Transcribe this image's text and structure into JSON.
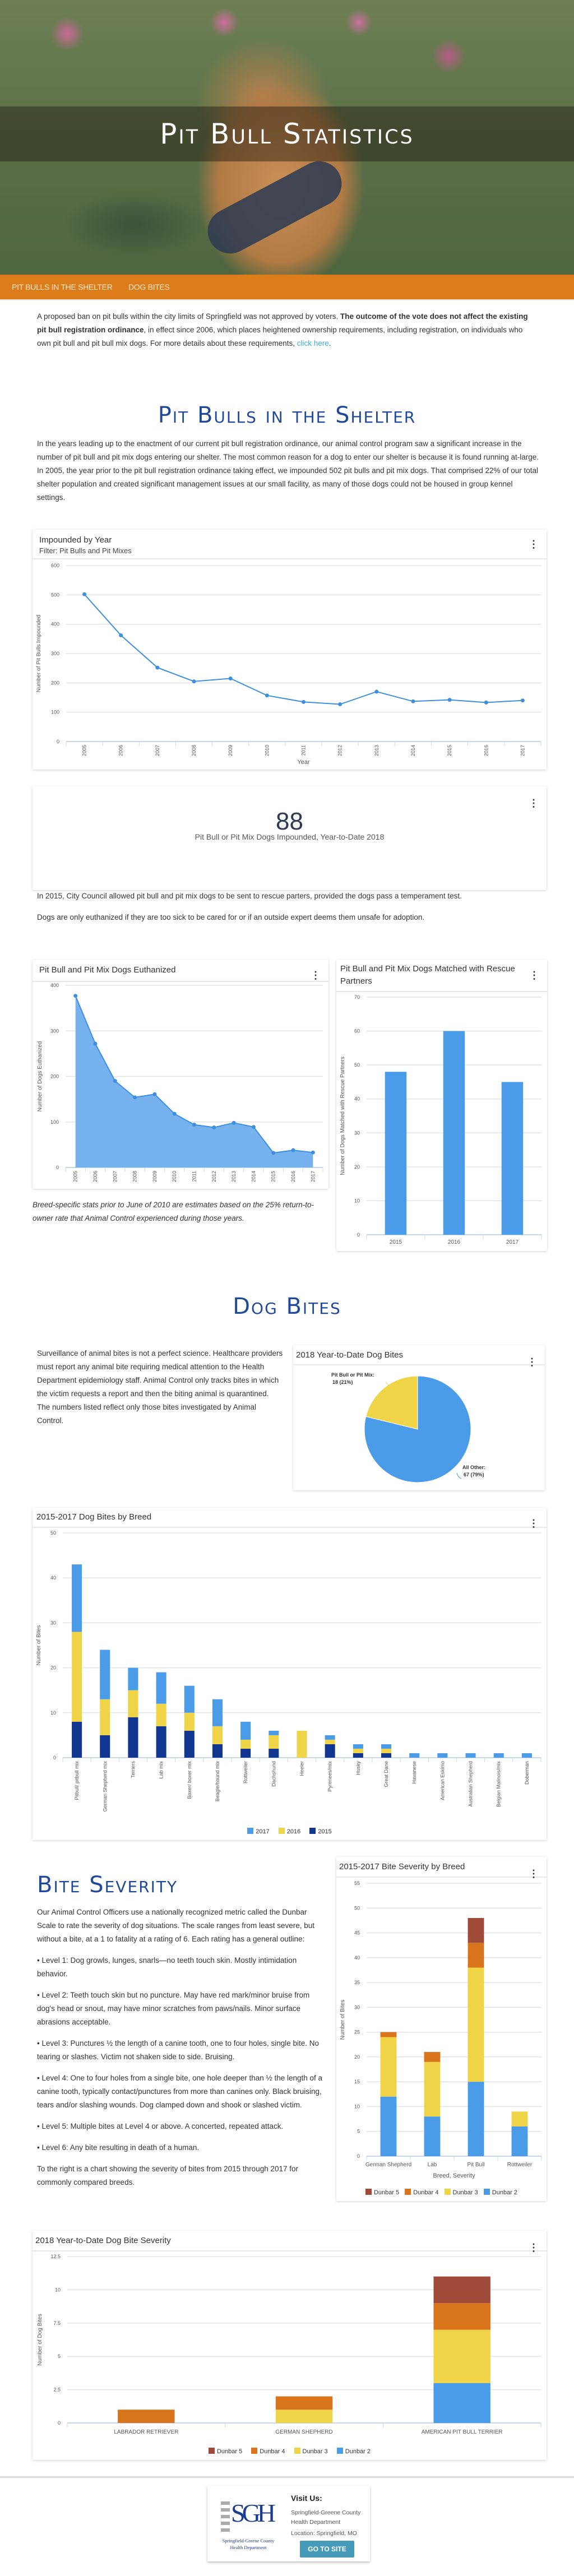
{
  "header": {
    "title": "Pit Bull Statistics"
  },
  "nav": {
    "items": [
      "Pit Bulls in the Shelter",
      "Dog Bites"
    ]
  },
  "intro": {
    "text1": "A proposed ban on pit bulls within the city limits of Springfield was not approved by voters. ",
    "bold": "The outcome of the vote does not affect the existing pit bull registration ordinance",
    "text2": ", in effect since 2006, which places heightened ownership requirements, including registration, on individuals who own pit bull and pit bull mix dogs. For more details about these requirements, ",
    "link": "click here",
    "end": "."
  },
  "shelter": {
    "heading": "Pit Bulls in the Shelter",
    "paragraph": "In the years leading up to the enactment of our current pit bull registration ordinance, our animal control program saw a significant increase in the number of pit bull and pit mix dogs entering our shelter. The most common reason for a dog to enter our shelter is because it is found running at-large. In 2005, the year prior to the pit bull registration ordinance taking effect, we impounded 502 pit bulls and pit mix dogs. That comprised 22% of our total shelter population and created significant management issues at our small facility, as many of those dogs could not be housed in group kennel settings.",
    "stat_value": "88",
    "stat_label": "Pit Bull or Pit Mix Dogs Impounded, Year-to-Date 2018",
    "note1": "In 2015, City Council allowed pit bull and pit mix dogs to be sent to rescue parters, provided the dogs pass a temperament test.",
    "note2": "Dogs are only euthanized if they are too sick to be cared for or if an outside expert deems them unsafe for adoption.",
    "italic_note": "Breed-specific stats prior to June of 2010 are estimates based on the 25% return-to-owner rate that Animal Control experienced during those years."
  },
  "bites": {
    "heading": "Dog Bites",
    "paragraph": "Surveillance of animal bites is not a perfect science. Healthcare providers must report any animal bite requiring medical attention to the Health Department epidemiology staff. Animal Control only tracks bites in which the victim requests a report and then the biting animal is quarantined. The numbers listed reflect only those bites investigated by Animal Control."
  },
  "severity": {
    "heading": "Bite Severity",
    "intro": "Our Animal Control Officers use a nationally recognized metric called the Dunbar Scale to rate the severity of dog situations. The scale ranges from least severe, but without a bite, at a 1 to fatality at a rating of 6. Each rating has a general outline:",
    "levels": [
      "• Level 1: Dog growls, lunges, snarls—no teeth touch skin. Mostly intimidation behavior.",
      "• Level 2: Teeth touch skin but no puncture. May have red mark/minor bruise from dog's head or snout, may have minor scratches from paws/nails. Minor surface abrasions acceptable.",
      "• Level 3: Punctures ½ the length of a canine tooth, one to four holes, single bite. No tearing or slashes. Victim not shaken side to side. Bruising.",
      "• Level 4: One to four holes from a single bite, one hole deeper than ½ the length of a canine tooth, typically contact/punctures from more than canines only. Black bruising, tears and/or slashing wounds. Dog clamped down and shook or slashed victim.",
      "• Level 5: Multiple bites at Level 4 or above. A concerted, repeated attack.",
      "• Level 6: Any bite resulting in death of a human."
    ],
    "outro": "To the right is a chart showing the severity of bites from 2015 through 2017 for commonly compared breeds."
  },
  "footer": {
    "visit": "Visit Us:",
    "org_line1": "Springfield-Greene County",
    "org_line2": "Health Department",
    "location": "Location: Springfield, MO",
    "button": "GO TO SITE",
    "logo_letters": "SGH",
    "logo_text1": "Springfield-Greene County",
    "logo_text2": "Health Department"
  },
  "menu_icon": "⋮",
  "colors": {
    "accent": "#dd7d1a",
    "heading": "#1f4a9a",
    "blue": "#4a9be8",
    "yellow": "#f0d447",
    "navy": "#10368f",
    "orange": "#d8741c",
    "brown": "#a04a3a",
    "button": "#469cb8"
  },
  "chart_data": [
    {
      "id": "impounded",
      "type": "line",
      "title": "Impounded by Year",
      "subtitle": "Filter: Pit Bulls and Pit Mixes",
      "xlabel": "Year",
      "ylabel": "Number of Pit Bulls Impounded",
      "categories": [
        "2005",
        "2006",
        "2007",
        "2008",
        "2009",
        "2010",
        "2011",
        "2012",
        "2013",
        "2014",
        "2015",
        "2016",
        "2017"
      ],
      "values": [
        502,
        362,
        252,
        205,
        215,
        157,
        135,
        127,
        170,
        137,
        142,
        133,
        140
      ],
      "ylim": [
        0,
        600
      ],
      "yticks": [
        0,
        100,
        200,
        300,
        400,
        500,
        600
      ]
    },
    {
      "id": "euthanized",
      "type": "area",
      "title": "Pit Bull and Pit Mix Dogs Euthanized",
      "xlabel": "",
      "ylabel": "Number of Dogs Euthanized",
      "categories": [
        "2005",
        "2006",
        "2007",
        "2008",
        "2009",
        "2010",
        "2011",
        "2012",
        "2013",
        "2014",
        "2015",
        "2016",
        "2017"
      ],
      "values": [
        377,
        272,
        190,
        154,
        161,
        118,
        94,
        88,
        98,
        89,
        32,
        38,
        33
      ],
      "ylim": [
        0,
        400
      ],
      "yticks": [
        0,
        100,
        200,
        300,
        400
      ]
    },
    {
      "id": "rescue",
      "type": "bar",
      "title": "Pit Bull and Pit Mix Dogs Matched with Rescue Partners",
      "xlabel": "",
      "ylabel": "Number of Dogs Matched with Rescue Partners",
      "categories": [
        "2015",
        "2016",
        "2017"
      ],
      "values": [
        48,
        60,
        45
      ],
      "ylim": [
        0,
        70
      ],
      "yticks": [
        0,
        10,
        20,
        30,
        40,
        50,
        60,
        70
      ]
    },
    {
      "id": "pie2018",
      "type": "pie",
      "title": "2018 Year-to-Date Dog Bites",
      "slices": [
        {
          "name": "Pit Bull or Pit Mix:",
          "value": 18,
          "label": "18 (21%)",
          "color": "#f0d447"
        },
        {
          "name": "All Other:",
          "value": 67,
          "label": "67 (79%)",
          "color": "#4a9be8"
        }
      ]
    },
    {
      "id": "breed",
      "type": "bar",
      "stacked": true,
      "title": "2015-2017 Dog Bites by Breed",
      "xlabel": "",
      "ylabel": "Number of Bites",
      "categories": [
        "Pitbull/ pitbull mix",
        "German Shepherd mix",
        "Terriers",
        "Lab mix",
        "Boxer/ boxer mix",
        "Beagle/hound mix",
        "Rottweiler",
        "Dachshund",
        "Heeler",
        "Pyrenees/mix",
        "Husky",
        "Great Dane",
        "Havanese",
        "American Eskimo",
        "Australian Shepherd",
        "Belgian Malinois/mix",
        "Doberman"
      ],
      "series": [
        {
          "name": "2015",
          "color": "#10368f",
          "values": [
            8,
            5,
            9,
            7,
            6,
            3,
            2,
            2,
            0,
            3,
            1,
            1,
            0,
            0,
            0,
            0,
            0
          ]
        },
        {
          "name": "2016",
          "color": "#f0d447",
          "values": [
            20,
            8,
            6,
            5,
            4,
            4,
            2,
            3,
            6,
            1,
            1,
            1,
            0,
            0,
            0,
            0,
            0
          ]
        },
        {
          "name": "2017",
          "color": "#4a9be8",
          "values": [
            15,
            11,
            5,
            7,
            6,
            6,
            4,
            1,
            0,
            1,
            1,
            1,
            1,
            1,
            1,
            1,
            1
          ]
        }
      ],
      "ylim": [
        0,
        50
      ],
      "yticks": [
        0,
        10,
        20,
        30,
        40,
        50
      ],
      "legend": "bottom"
    },
    {
      "id": "severity",
      "type": "bar",
      "stacked": true,
      "title": "2015-2017 Bite Severity by Breed",
      "xlabel": "Breed, Severity",
      "ylabel": "Number of Bites",
      "categories": [
        "German Shepherd",
        "Lab",
        "Pit Bull",
        "Rottweiler"
      ],
      "series": [
        {
          "name": "Dunbar 2",
          "color": "#4a9be8",
          "values": [
            12,
            8,
            15,
            6
          ]
        },
        {
          "name": "Dunbar 3",
          "color": "#f0d447",
          "values": [
            12,
            11,
            23,
            3
          ]
        },
        {
          "name": "Dunbar 4",
          "color": "#d8741c",
          "values": [
            1,
            2,
            5,
            0
          ]
        },
        {
          "name": "Dunbar 5",
          "color": "#a04a3a",
          "values": [
            0,
            0,
            5,
            0
          ]
        }
      ],
      "ylim": [
        0,
        55
      ],
      "yticks": [
        0,
        5,
        10,
        15,
        20,
        25,
        30,
        35,
        40,
        45,
        50,
        55
      ],
      "legend": "bottom"
    },
    {
      "id": "sev2018",
      "type": "bar",
      "stacked": true,
      "title": "2018 Year-to-Date Dog Bite Severity",
      "xlabel": "",
      "ylabel": "Number of Dog Bites",
      "categories": [
        "LABRADOR RETRIEVER",
        "GERMAN SHEPHERD",
        "AMERICAN PIT BULL TERRIER"
      ],
      "series": [
        {
          "name": "Dunbar 2",
          "color": "#4a9be8",
          "values": [
            0,
            0,
            3
          ]
        },
        {
          "name": "Dunbar 3",
          "color": "#f0d447",
          "values": [
            0,
            1,
            4
          ]
        },
        {
          "name": "Dunbar 4",
          "color": "#d8741c",
          "values": [
            1,
            1,
            2
          ]
        },
        {
          "name": "Dunbar 5",
          "color": "#a04a3a",
          "values": [
            0,
            0,
            2
          ]
        }
      ],
      "ylim": [
        0,
        12.5
      ],
      "yticks": [
        0,
        2.5,
        5,
        7.5,
        10,
        12.5
      ],
      "legend": "bottom"
    }
  ]
}
